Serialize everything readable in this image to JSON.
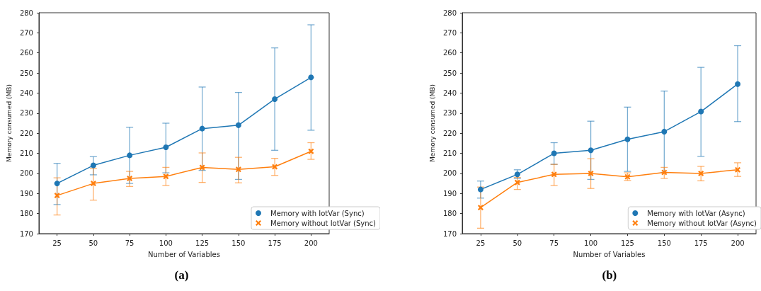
{
  "chart_data": [
    {
      "type": "line",
      "xlabel": "Number of Variables",
      "ylabel": "Memory consumed (MB)",
      "annotations": [
        "(a)"
      ],
      "categories": [
        "25",
        "50",
        "75",
        "100",
        "125",
        "150",
        "175",
        "200"
      ],
      "ylim": [
        170,
        280
      ],
      "yticks": [
        170,
        180,
        190,
        200,
        210,
        220,
        230,
        240,
        250,
        260,
        270,
        280
      ],
      "grid": false,
      "legend": "bottom right",
      "series": [
        {
          "name": "Memory with IotVar (Sync)",
          "color": "#1f77b4",
          "marker": "circle",
          "values": [
            195,
            204,
            209,
            213,
            222.3,
            224,
            237,
            247.8
          ],
          "errors": [
            [
              184.5,
              205
            ],
            [
              199.3,
              208.3
            ],
            [
              195,
              223
            ],
            [
              200.3,
              225
            ],
            [
              201.5,
              243
            ],
            [
              197,
              240.3
            ],
            [
              211.5,
              262.5
            ],
            [
              221.5,
              274
            ]
          ]
        },
        {
          "name": "Memory without IotVar (Sync)",
          "color": "#ff7f0e",
          "marker": "cross",
          "values": [
            189,
            195,
            197.5,
            198.5,
            203,
            202,
            203.3,
            211
          ],
          "errors": [
            [
              179.3,
              197.8
            ],
            [
              186.7,
              202.5
            ],
            [
              193.5,
              201
            ],
            [
              194,
              203
            ],
            [
              195.5,
              210.2
            ],
            [
              195.3,
              208
            ],
            [
              199,
              207.5
            ],
            [
              207,
              215.3
            ]
          ]
        }
      ]
    },
    {
      "type": "line",
      "xlabel": "Number of Variables",
      "ylabel": "Memory consumed (MB)",
      "annotations": [
        "(b)"
      ],
      "categories": [
        "25",
        "50",
        "75",
        "100",
        "125",
        "150",
        "175",
        "200"
      ],
      "ylim": [
        170,
        280
      ],
      "yticks": [
        170,
        180,
        190,
        200,
        210,
        220,
        230,
        240,
        250,
        260,
        270,
        280
      ],
      "grid": false,
      "legend": "bottom right",
      "series": [
        {
          "name": "Memory with IotVar (Async)",
          "color": "#1f77b4",
          "marker": "circle",
          "values": [
            192,
            199.5,
            210,
            211.5,
            217,
            220.8,
            230.8,
            244.5
          ],
          "errors": [
            [
              187.7,
              196.2
            ],
            [
              197.5,
              201.8
            ],
            [
              204.5,
              215.3
            ],
            [
              197,
              226
            ],
            [
              201,
              233
            ],
            [
              200.5,
              241
            ],
            [
              208.5,
              252.8
            ],
            [
              225.8,
              263.6
            ]
          ]
        },
        {
          "name": "Memory without IotVar (Async)",
          "color": "#ff7f0e",
          "marker": "cross",
          "values": [
            183,
            195.5,
            199.5,
            200,
            198.3,
            200.5,
            200,
            201.8
          ],
          "errors": [
            [
              172.7,
              193.2
            ],
            [
              192,
              198
            ],
            [
              194,
              204.5
            ],
            [
              192.5,
              207.3
            ],
            [
              196.5,
              200.3
            ],
            [
              197.5,
              203
            ],
            [
              196.3,
              203.5
            ],
            [
              198.5,
              205.3
            ]
          ]
        }
      ]
    }
  ]
}
